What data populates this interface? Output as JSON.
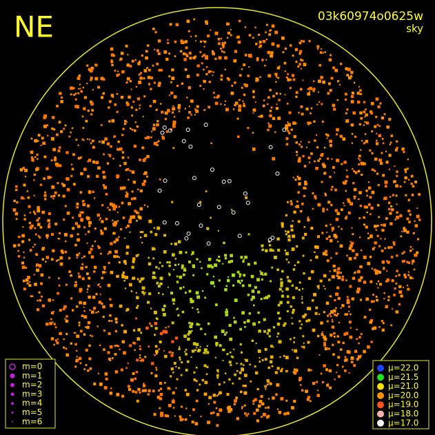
{
  "header": {
    "direction": "NE",
    "frame_id": "03k60974o0625w",
    "mode": "sky"
  },
  "magnitude_legend": {
    "color": "#c020e0",
    "items": [
      "m=0",
      "m=1",
      "m=2",
      "m=3",
      "m=4",
      "m=5",
      "m=6"
    ]
  },
  "brightness_legend": {
    "items": [
      {
        "label": "μ=22.0",
        "color": "#2040ff"
      },
      {
        "label": "μ=21.5",
        "color": "#20e020"
      },
      {
        "label": "μ=21.0",
        "color": "#ffe000"
      },
      {
        "label": "μ=20.0",
        "color": "#ff9000"
      },
      {
        "label": "μ=19.0",
        "color": "#ff5020"
      },
      {
        "label": "μ=18.0",
        "color": "#ffb0b0"
      },
      {
        "label": "μ=17.0",
        "color": "#ffffff"
      }
    ]
  }
}
